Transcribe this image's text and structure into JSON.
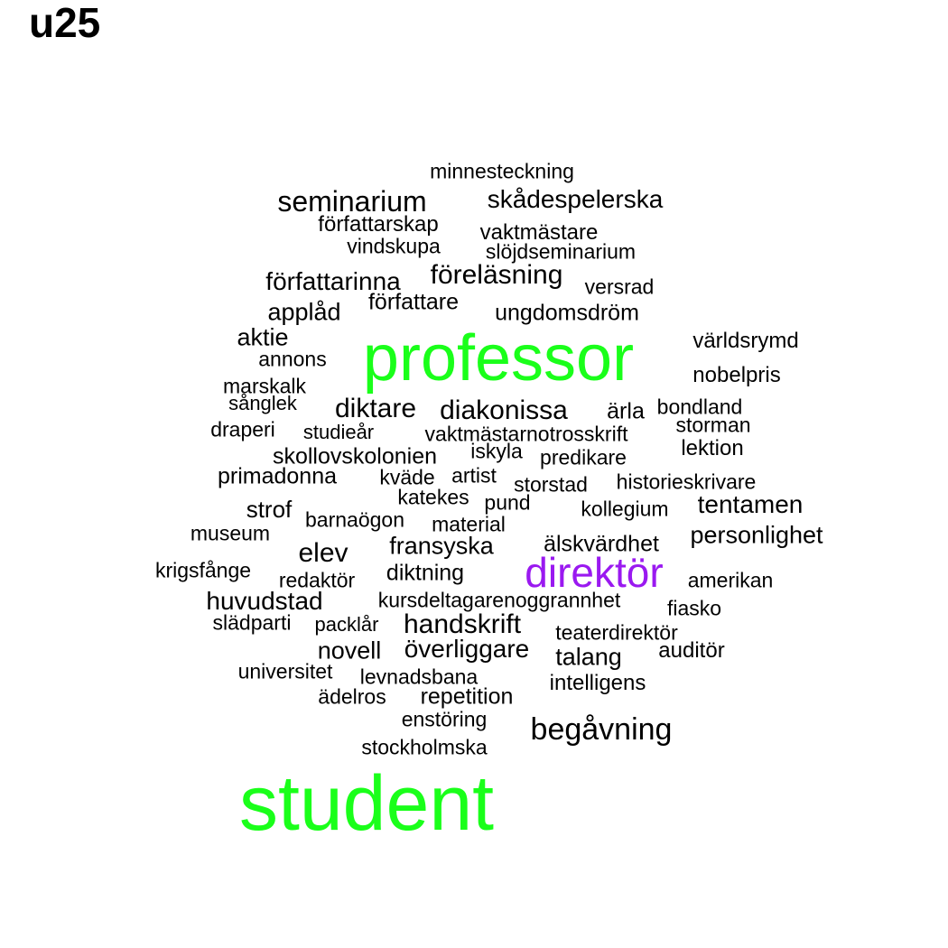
{
  "title": "u25",
  "colors": {
    "default": "#000000",
    "highlight_green": "#1aff1a",
    "highlight_purple": "#9a19f0"
  },
  "words": [
    {
      "text": "student",
      "color": "highlight_green"
    },
    {
      "text": "professor",
      "color": "highlight_green"
    },
    {
      "text": "direktör",
      "color": "highlight_purple"
    },
    {
      "text": "begåvning"
    },
    {
      "text": "seminarium"
    },
    {
      "text": "handskrift"
    },
    {
      "text": "föreläsning"
    },
    {
      "text": "diakonissa"
    },
    {
      "text": "diktare"
    },
    {
      "text": "elev"
    },
    {
      "text": "tentamen"
    },
    {
      "text": "författarinna"
    },
    {
      "text": "skådespelerska"
    },
    {
      "text": "överliggare"
    },
    {
      "text": "huvudstad"
    },
    {
      "text": "fransyska"
    },
    {
      "text": "personlighet"
    },
    {
      "text": "applåd"
    },
    {
      "text": "talang"
    },
    {
      "text": "novell"
    },
    {
      "text": "repetition"
    },
    {
      "text": "diktning"
    },
    {
      "text": "skollovskolonien"
    },
    {
      "text": "ungdomsdröm"
    },
    {
      "text": "författare"
    },
    {
      "text": "aktie"
    },
    {
      "text": "älskvärdhet"
    },
    {
      "text": "primadonna"
    },
    {
      "text": "ärla"
    },
    {
      "text": "författarskap"
    },
    {
      "text": "vaktmästare"
    },
    {
      "text": "världsrymd"
    },
    {
      "text": "lektion"
    },
    {
      "text": "minnesteckning"
    },
    {
      "text": "nobelpris"
    },
    {
      "text": "vaktmästarnotrosskrift"
    },
    {
      "text": "auditör"
    },
    {
      "text": "intelligens"
    },
    {
      "text": "strof"
    },
    {
      "text": "vindskupa"
    },
    {
      "text": "slöjdseminarium"
    },
    {
      "text": "versrad"
    },
    {
      "text": "annons"
    },
    {
      "text": "marskalk"
    },
    {
      "text": "sånglek"
    },
    {
      "text": "bondland"
    },
    {
      "text": "draperi"
    },
    {
      "text": "studieår"
    },
    {
      "text": "storman"
    },
    {
      "text": "iskyla"
    },
    {
      "text": "predikare"
    },
    {
      "text": "kväde"
    },
    {
      "text": "artist"
    },
    {
      "text": "storstad"
    },
    {
      "text": "historieskrivare"
    },
    {
      "text": "katekes"
    },
    {
      "text": "pund"
    },
    {
      "text": "kollegium"
    },
    {
      "text": "barnaögon"
    },
    {
      "text": "material"
    },
    {
      "text": "museum"
    },
    {
      "text": "krigsfånge"
    },
    {
      "text": "redaktör"
    },
    {
      "text": "amerikan"
    },
    {
      "text": "kursdeltagarenoggrannhet"
    },
    {
      "text": "fiasko"
    },
    {
      "text": "slädparti"
    },
    {
      "text": "packlår"
    },
    {
      "text": "teaterdirektör"
    },
    {
      "text": "universitet"
    },
    {
      "text": "levnadsbana"
    },
    {
      "text": "ädelros"
    },
    {
      "text": "enstöring"
    },
    {
      "text": "stockholmska"
    }
  ]
}
